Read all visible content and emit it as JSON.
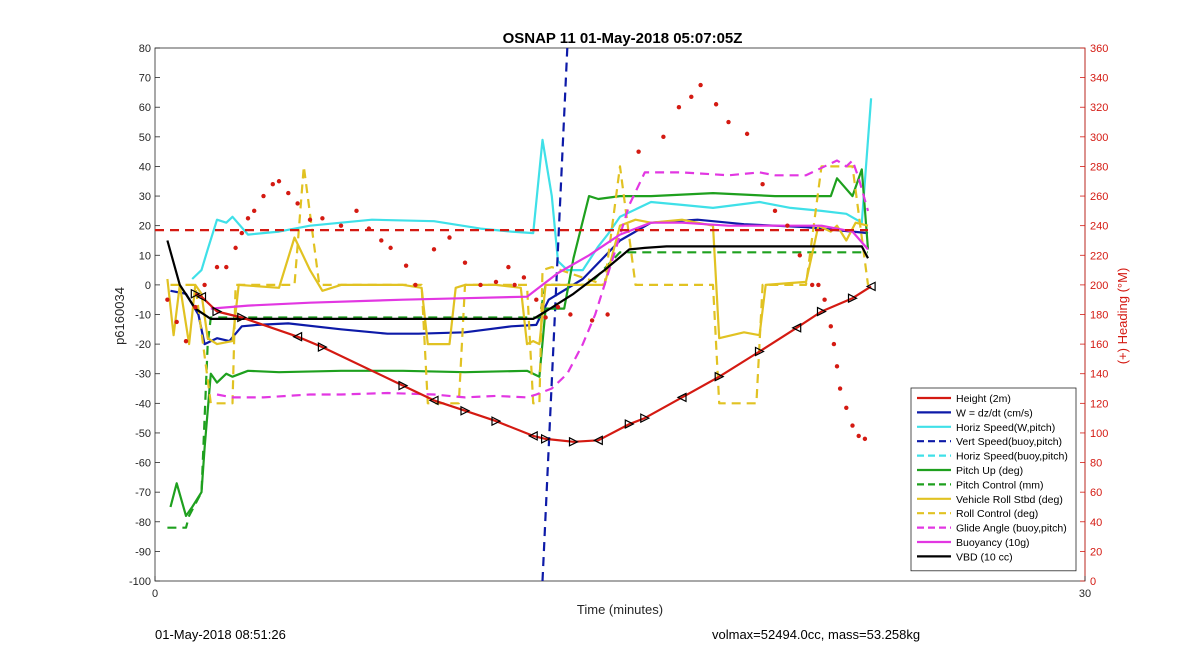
{
  "chart_data": {
    "type": "line",
    "title": "OSNAP 11 01-May-2018 05:07:05Z",
    "xlabel": "Time (minutes)",
    "ylabel": "p6160034",
    "y2label": "(+) Heading (°M)",
    "xlim": [
      0,
      30
    ],
    "ylim": [
      -100,
      80
    ],
    "y2lim": [
      0,
      360
    ],
    "xticks": [
      0,
      30
    ],
    "yticks": [
      -100,
      -90,
      -80,
      -70,
      -60,
      -50,
      -40,
      -30,
      -20,
      -10,
      0,
      10,
      20,
      30,
      40,
      50,
      60,
      70,
      80
    ],
    "y2ticks": [
      0,
      20,
      40,
      60,
      80,
      100,
      120,
      140,
      160,
      180,
      200,
      220,
      240,
      260,
      280,
      300,
      320,
      340,
      360
    ],
    "grid": false,
    "legend_position": "bottom-right",
    "colors": {
      "red": "#d41a12",
      "blue": "#0d1aa8",
      "cyan": "#3fe0e8",
      "green": "#1ea01e",
      "yellow": "#e1c222",
      "magenta": "#e237e2",
      "black": "#000000"
    },
    "series": [
      {
        "name": "Height (2m)",
        "color": "#d41a12",
        "style": "solid",
        "axis": "left",
        "x": [
          1.3,
          1.5,
          2.0,
          2.8,
          4.6,
          5.4,
          8.0,
          9.0,
          10.0,
          11.0,
          12.2,
          12.6,
          13.5,
          14.3,
          15.3,
          15.8,
          17.0,
          18.2,
          19.5,
          20.7,
          21.5,
          22.5,
          23.1
        ],
        "y": [
          -3.0,
          -4.0,
          -9.0,
          -11.0,
          -17.5,
          -21.0,
          -34.0,
          -39.0,
          -42.5,
          -46.0,
          -51.0,
          -52.0,
          -53.0,
          -52.5,
          -47.0,
          -45.0,
          -38.0,
          -31.0,
          -22.5,
          -14.5,
          -9.0,
          -4.5,
          -0.5
        ]
      },
      {
        "name": "W = dz/dt (cm/s)",
        "color": "#0d1aa8",
        "style": "solid",
        "axis": "left",
        "x": [
          0.5,
          1.0,
          1.4,
          1.6,
          2.0,
          2.4,
          2.8,
          3.3,
          4.3,
          6.0,
          7.5,
          8.5,
          10.0,
          11.5,
          12.3,
          12.7,
          13.8,
          15.0,
          16.0,
          17.5,
          19.0,
          20.0,
          21.0,
          22.0,
          23.0
        ],
        "y": [
          -2.0,
          -3.0,
          -10.0,
          -20.0,
          -18.0,
          -19.0,
          -14.0,
          -13.5,
          -13.0,
          -15.0,
          -16.5,
          -16.5,
          -16.0,
          -14.0,
          -13.5,
          -5.0,
          2.0,
          15.0,
          21.0,
          22.0,
          20.5,
          20.0,
          19.5,
          18.5,
          17.5
        ]
      },
      {
        "name": "Horiz Speed(W,pitch)",
        "color": "#3fe0e8",
        "style": "solid",
        "axis": "left",
        "x": [
          1.2,
          1.5,
          1.7,
          2.0,
          2.3,
          2.5,
          3.0,
          4.0,
          5.0,
          7.0,
          9.0,
          10.5,
          11.5,
          12.2,
          12.5,
          12.8,
          13.0,
          13.3,
          13.8,
          14.3,
          14.6,
          15.0,
          16.0,
          17.0,
          18.0,
          19.5,
          20.5,
          21.5,
          22.3,
          22.8,
          23.1
        ],
        "y": [
          2.0,
          5.0,
          12.0,
          22.0,
          21.0,
          23.0,
          17.0,
          18.0,
          20.0,
          22.0,
          21.5,
          19.0,
          18.0,
          17.5,
          49.0,
          30.0,
          8.0,
          5.0,
          5.0,
          13.0,
          17.0,
          23.0,
          28.0,
          27.0,
          26.0,
          28.0,
          26.0,
          25.0,
          24.0,
          21.0,
          63.0
        ]
      },
      {
        "name": "Vert Speed(buoy,pitch)",
        "color": "#0d1aa8",
        "style": "dashed",
        "axis": "left",
        "x": [
          12.5,
          13.3
        ],
        "y": [
          -100,
          80
        ]
      },
      {
        "name": "Horiz Speed(buoy,pitch)",
        "color": "#3fe0e8",
        "style": "dashed",
        "axis": "left",
        "x": [],
        "y": []
      },
      {
        "name": "Pitch Up (deg)",
        "color": "#1ea01e",
        "style": "solid",
        "axis": "left",
        "x": [
          0.5,
          0.7,
          1.0,
          1.2,
          1.5,
          1.6,
          1.8,
          2.0,
          2.3,
          2.5,
          3.0,
          4.0,
          6.0,
          8.0,
          10.0,
          12.0,
          12.4,
          12.6,
          13.2,
          13.5,
          14.0,
          14.3,
          15.0,
          16.0,
          18.0,
          20.0,
          21.0,
          21.8,
          22.0,
          22.5,
          22.8,
          23.0
        ],
        "y": [
          -75.0,
          -67.0,
          -78.0,
          -75.0,
          -70.0,
          -55.0,
          -30.0,
          -33.0,
          -30.0,
          -31.0,
          -29.0,
          -29.5,
          -29.0,
          -29.0,
          -29.5,
          -29.0,
          -31.0,
          -8.0,
          -8.0,
          9.0,
          30.0,
          29.0,
          30.0,
          30.0,
          31.0,
          30.0,
          30.0,
          30.0,
          36.0,
          30.0,
          39.0,
          12.0
        ]
      },
      {
        "name": "Pitch Control (mm)",
        "color": "#1ea01e",
        "style": "dashed",
        "axis": "left",
        "x": [
          0.4,
          1.0,
          1.1,
          1.5,
          1.7,
          1.8,
          2.5,
          5.0,
          8.0,
          10.0,
          12.0,
          12.4,
          12.6,
          14.0,
          15.0,
          16.0,
          18.0,
          20.0,
          22.0,
          23.0
        ],
        "y": [
          -82.0,
          -82.0,
          -78.0,
          -70.0,
          -20.0,
          -11.0,
          -11.0,
          -11.0,
          -11.0,
          -11.0,
          -11.0,
          -11.0,
          0.0,
          0.0,
          11.0,
          11.0,
          11.0,
          11.0,
          11.0,
          11.0
        ]
      },
      {
        "name": "Vehicle Roll Stbd (deg)",
        "color": "#e1c222",
        "style": "solid",
        "axis": "left",
        "x": [
          0.4,
          0.6,
          0.8,
          1.1,
          1.3,
          1.5,
          1.7,
          2.0,
          2.5,
          2.7,
          4.0,
          4.5,
          5.0,
          5.4,
          6.0,
          7.0,
          8.0,
          8.6,
          8.8,
          9.5,
          9.7,
          10.0,
          11.0,
          11.8,
          12.0,
          12.2,
          12.4,
          12.6,
          13.0,
          14.5,
          15.0,
          15.5,
          16.0,
          17.0,
          18.0,
          18.2,
          19.0,
          19.5,
          19.7,
          21.0,
          21.4,
          21.8,
          22.0,
          22.3,
          22.6,
          23.0
        ],
        "y": [
          2.0,
          -17.0,
          0.0,
          -20.0,
          0.0,
          -3.0,
          -18.0,
          -20.0,
          -19.0,
          0.0,
          -1.0,
          16.0,
          5.0,
          -2.0,
          0.0,
          0.0,
          0.0,
          -1.0,
          -20.0,
          -20.0,
          -1.0,
          0.0,
          0.0,
          -1.0,
          -20.0,
          -19.0,
          -20.0,
          0.0,
          0.0,
          0.0,
          20.0,
          22.0,
          21.0,
          22.0,
          20.0,
          -18.0,
          -16.0,
          -17.0,
          0.0,
          1.0,
          20.0,
          18.0,
          20.0,
          15.0,
          21.0,
          20.0
        ]
      },
      {
        "name": "Roll Control (deg)",
        "color": "#e1c222",
        "style": "dashed",
        "axis": "left",
        "x": [
          0.5,
          1.3,
          1.8,
          2.0,
          2.5,
          2.6,
          4.5,
          4.8,
          5.3,
          5.5,
          7.5,
          8.6,
          8.8,
          9.8,
          10.0,
          12.0,
          12.2,
          12.4,
          12.5,
          12.8,
          14.5,
          15.0,
          15.5,
          17.0,
          18.0,
          18.2,
          19.0,
          19.4,
          19.6,
          21.0,
          21.5,
          22.5,
          23.0
        ],
        "y": [
          0.0,
          0.0,
          -40.0,
          -40.0,
          -40.0,
          0.0,
          0.0,
          40.0,
          0.0,
          0.0,
          0.0,
          0.0,
          -40.0,
          -40.0,
          0.0,
          0.0,
          -40.0,
          -40.0,
          5.0,
          6.0,
          0.0,
          40.0,
          0.0,
          0.0,
          0.0,
          -40.0,
          -40.0,
          -40.0,
          0.0,
          0.0,
          40.0,
          40.0,
          0.0
        ]
      },
      {
        "name": "Glide Angle (buoy,pitch)",
        "color": "#e237e2",
        "style": "dashed",
        "axis": "left",
        "x": [
          2.0,
          2.5,
          3.5,
          5.0,
          6.0,
          7.5,
          9.0,
          10.0,
          11.0,
          12.0,
          12.3,
          12.8,
          13.3,
          13.8,
          14.2,
          14.8,
          15.3,
          15.8,
          17.0,
          18.5,
          19.5,
          20.0,
          21.0,
          22.0,
          22.3,
          22.5,
          22.7,
          23.0
        ],
        "y": [
          -37.0,
          -38.0,
          -38.0,
          -37.0,
          -37.0,
          -36.5,
          -37.0,
          -38.0,
          -37.5,
          -38.0,
          -37.0,
          -35.0,
          -30.0,
          -20.0,
          -10.0,
          10.0,
          27.0,
          38.0,
          38.0,
          37.0,
          38.0,
          37.0,
          37.0,
          42.0,
          40.0,
          42.0,
          36.0,
          25.0
        ]
      },
      {
        "name": "Buoyancy (10g)",
        "color": "#e237e2",
        "style": "solid",
        "axis": "left",
        "x": [
          1.8,
          3.0,
          5.0,
          8.0,
          10.0,
          12.0,
          12.5,
          13.0,
          14.0,
          15.0,
          16.0,
          17.0,
          18.5,
          20.0,
          21.5,
          22.5,
          23.0
        ],
        "y": [
          -8.0,
          -7.0,
          -6.0,
          -5.0,
          -4.5,
          -4.0,
          0.0,
          4.0,
          10.0,
          17.0,
          21.0,
          21.0,
          20.0,
          20.0,
          20.0,
          18.0,
          12.0
        ]
      },
      {
        "name": "VBD (10 cc)",
        "color": "#000000",
        "style": "solid",
        "axis": "left",
        "x": [
          0.4,
          0.8,
          1.3,
          1.8,
          3.0,
          5.0,
          8.0,
          10.0,
          11.5,
          12.2,
          12.6,
          13.5,
          14.5,
          15.3,
          15.8,
          16.5,
          18.0,
          20.0,
          22.0,
          22.8,
          23.0
        ],
        "y": [
          15.0,
          0.0,
          -8.0,
          -11.5,
          -11.5,
          -11.5,
          -11.5,
          -11.5,
          -11.5,
          -11.5,
          -9.0,
          -3.0,
          5.0,
          12.0,
          12.5,
          13.0,
          13.0,
          13.0,
          13.0,
          13.0,
          9.0
        ]
      },
      {
        "name": "",
        "color": "#d41a12",
        "style": "dashed",
        "axis": "right",
        "x": [
          0,
          23
        ],
        "y": [
          237,
          237
        ]
      },
      {
        "name": "",
        "color": "#d41a12",
        "style": "dots",
        "axis": "right",
        "x": [
          0.4,
          0.7,
          1.0,
          1.3,
          1.6,
          2.0,
          2.3,
          2.6,
          2.8,
          3.0,
          3.2,
          3.5,
          3.8,
          4.0,
          4.3,
          4.6,
          5.0,
          5.4,
          6.0,
          6.5,
          6.9,
          7.3,
          7.6,
          8.1,
          8.4,
          9.0,
          9.5,
          10.0,
          10.5,
          11.0,
          11.4,
          11.6,
          11.9,
          12.3,
          12.6,
          13.0,
          13.4,
          14.1,
          14.6,
          15.6,
          16.4,
          16.9,
          17.3,
          17.6,
          18.1,
          18.5,
          19.1,
          19.6,
          20.0,
          20.4,
          20.8,
          21.2,
          21.4,
          21.6,
          21.8,
          21.9,
          22.0,
          22.1,
          22.3,
          22.5,
          22.7,
          22.9
        ],
        "y": [
          190,
          175,
          162,
          185,
          200,
          212,
          212,
          225,
          235,
          245,
          250,
          260,
          268,
          270,
          262,
          255,
          244,
          245,
          240,
          250,
          238,
          230,
          225,
          213,
          200,
          224,
          232,
          215,
          200,
          202,
          212,
          200,
          205,
          190,
          178,
          185,
          180,
          176,
          180,
          290,
          300,
          320,
          327,
          335,
          322,
          310,
          302,
          268,
          250,
          240,
          220,
          200,
          200,
          190,
          172,
          160,
          145,
          130,
          117,
          105,
          98,
          96
        ]
      }
    ],
    "annotations": []
  },
  "footer": {
    "timestamp": "01-May-2018 08:51:26",
    "volmax_mass": "volmax=52494.0cc, mass=53.258kg"
  }
}
